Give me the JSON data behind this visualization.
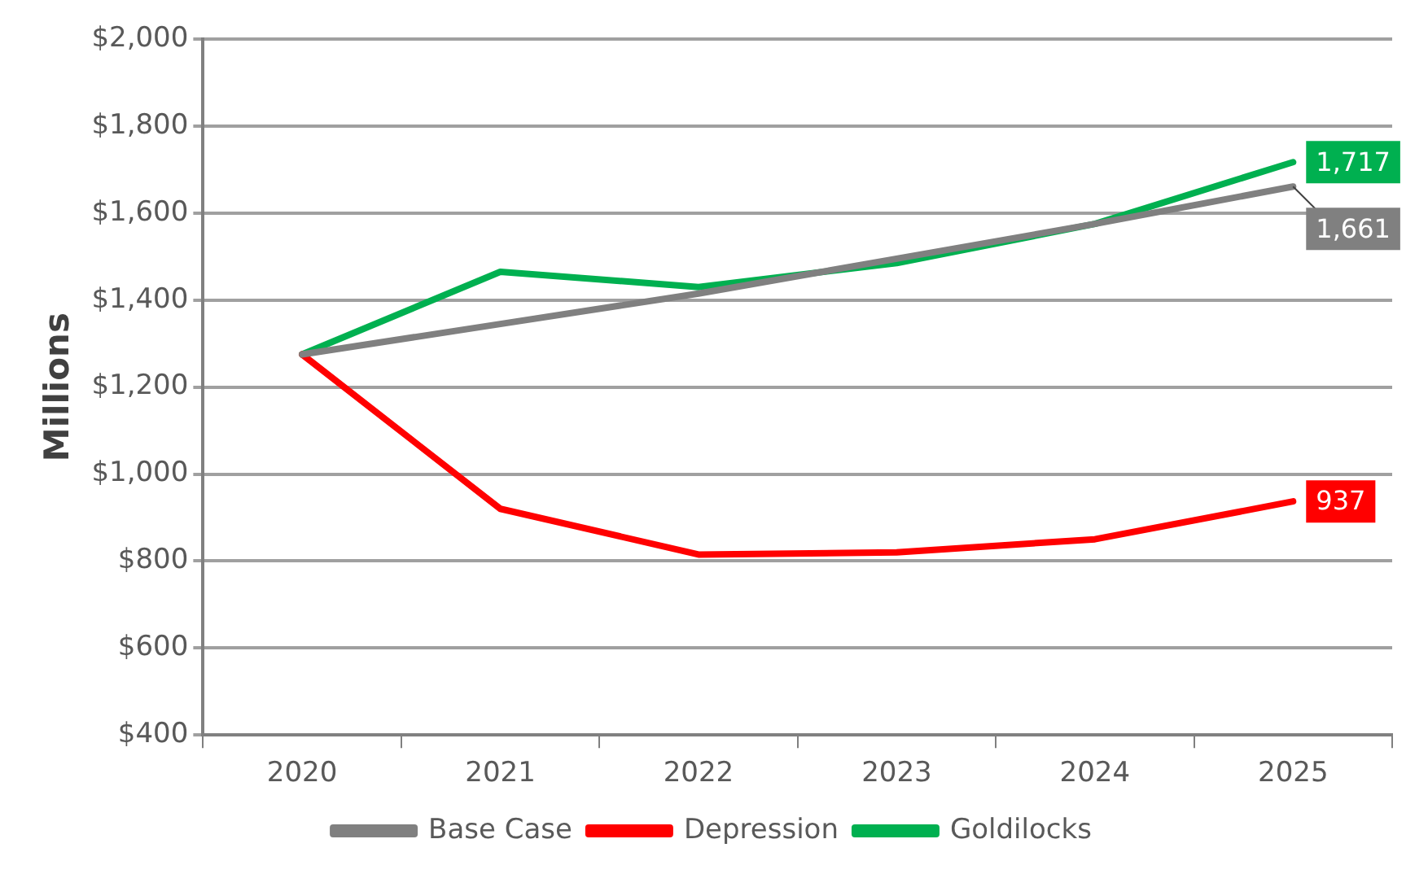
{
  "chart_data": {
    "type": "line",
    "ylabel": "Millions",
    "categories": [
      "2020",
      "2021",
      "2022",
      "2023",
      "2024",
      "2025"
    ],
    "series": [
      {
        "name": "Base Case",
        "color": "#808080",
        "values": [
          1275,
          1345,
          1415,
          1495,
          1575,
          1661
        ],
        "value_labels": [
          null,
          null,
          null,
          null,
          null,
          "1,661"
        ]
      },
      {
        "name": "Depression",
        "color": "#ff0000",
        "values": [
          1275,
          920,
          815,
          820,
          850,
          937
        ],
        "value_labels": [
          null,
          null,
          null,
          null,
          null,
          "937"
        ]
      },
      {
        "name": "Goldilocks",
        "color": "#00b050",
        "values": [
          1275,
          1465,
          1430,
          1485,
          1575,
          1717
        ],
        "value_labels": [
          null,
          null,
          null,
          null,
          null,
          "1,717"
        ]
      }
    ],
    "ylim": [
      400,
      2000
    ],
    "yticks": [
      {
        "value": 400,
        "label": "$400"
      },
      {
        "value": 600,
        "label": "$600"
      },
      {
        "value": 800,
        "label": "$800"
      },
      {
        "value": 1000,
        "label": "$1,000"
      },
      {
        "value": 1200,
        "label": "$1,200"
      },
      {
        "value": 1400,
        "label": "$1,400"
      },
      {
        "value": 1600,
        "label": "$1,600"
      },
      {
        "value": 1800,
        "label": "$1,800"
      },
      {
        "value": 2000,
        "label": "$2,000"
      }
    ],
    "grid": "y",
    "legend": "bottom",
    "marker": "none",
    "line_style": "solid"
  }
}
